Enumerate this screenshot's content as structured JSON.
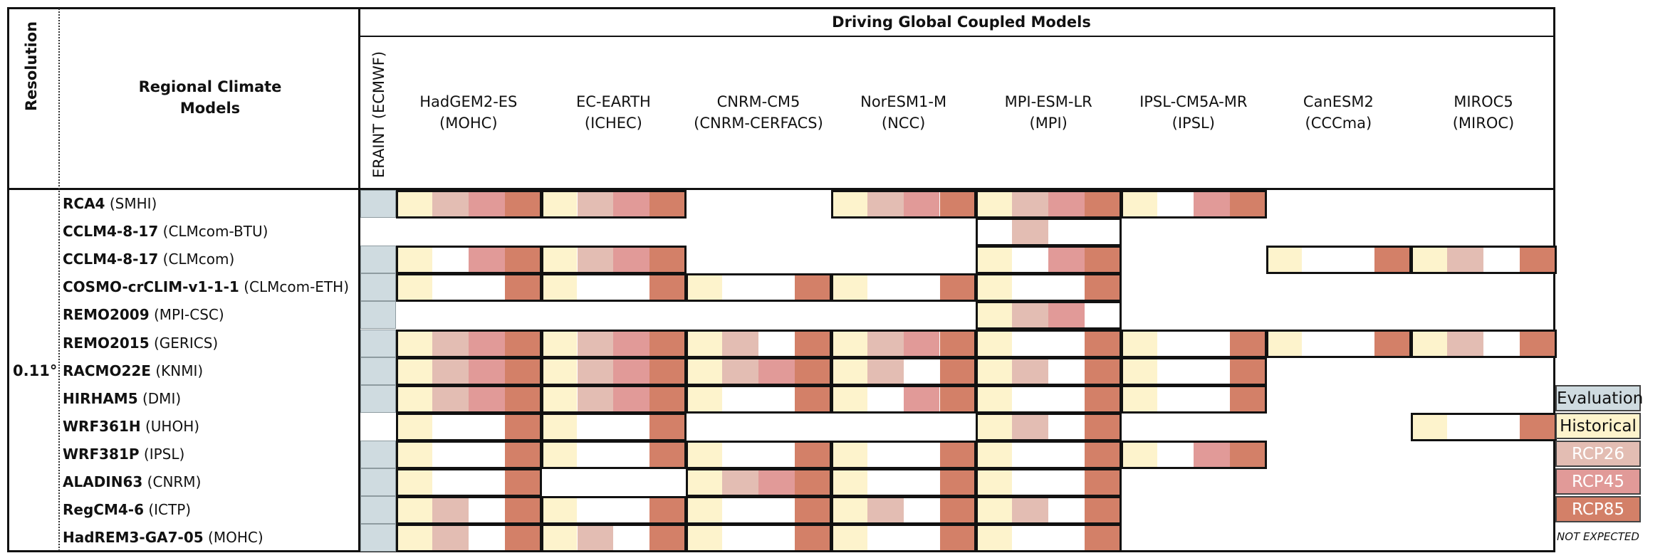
{
  "header": {
    "resolution": "Resolution",
    "rcm_title_line1": "Regional Climate",
    "rcm_title_line2": "Models",
    "driving_title": "Driving Global Coupled Models",
    "eraint": "ERAINT (ECMWF)"
  },
  "gcms": [
    {
      "name": "HadGEM2-ES",
      "inst": "(MOHC)"
    },
    {
      "name": "EC-EARTH",
      "inst": "(ICHEC)"
    },
    {
      "name": "CNRM-CM5",
      "inst": "(CNRM-CERFACS)"
    },
    {
      "name": "NorESM1-M",
      "inst": "(NCC)"
    },
    {
      "name": "MPI-ESM-LR",
      "inst": "(MPI)"
    },
    {
      "name": "IPSL-CM5A-MR",
      "inst": "(IPSL)"
    },
    {
      "name": "CanESM2",
      "inst": "(CCCma)"
    },
    {
      "name": "MIROC5",
      "inst": "(MIROC)"
    }
  ],
  "resolution_value": "0.11°",
  "colors": {
    "evaluation": "#cfdbe0",
    "historical": "#fdf3cc",
    "rcp26": "#e3bdb3",
    "rcp45": "#e19a98",
    "rcp85": "#d38068",
    "empty": "#ffffff"
  },
  "rcms": [
    {
      "model": "RCA4",
      "inst": " (SMHI)"
    },
    {
      "model": "CCLM4-8-17",
      "inst": " (CLMcom-BTU)"
    },
    {
      "model": "CCLM4-8-17",
      "inst": " (CLMcom)"
    },
    {
      "model": "COSMO-crCLIM-v1-1-1",
      "inst": " (CLMcom-ETH)"
    },
    {
      "model": "REMO2009",
      "inst": " (MPI-CSC)"
    },
    {
      "model": "REMO2015",
      "inst": " (GERICS)"
    },
    {
      "model": "RACMO22E",
      "inst": " (KNMI)"
    },
    {
      "model": "HIRHAM5",
      "inst": " (DMI)"
    },
    {
      "model": "WRF361H",
      "inst": " (UHOH)"
    },
    {
      "model": "WRF381P",
      "inst": " (IPSL)"
    },
    {
      "model": "ALADIN63",
      "inst": " (CNRM)"
    },
    {
      "model": "RegCM4-6",
      "inst": " (ICTP)"
    },
    {
      "model": "HadREM3-GA7-05",
      "inst": " (MOHC)"
    }
  ],
  "matrix": {
    "eval": [
      1,
      0,
      1,
      1,
      1,
      1,
      1,
      1,
      0,
      1,
      1,
      1,
      1
    ],
    "cells": [
      [
        "HBCD",
        "HBCD",
        "",
        "HBCD",
        "HBCD",
        "H-CD",
        "",
        ""
      ],
      [
        "",
        "",
        "",
        "",
        "-B--",
        "",
        "",
        ""
      ],
      [
        "H-CD",
        "HBCD",
        "",
        "",
        "H-CD",
        "",
        "H--D",
        "HB-D"
      ],
      [
        "H--D",
        "H--D",
        "H--D",
        "H--D",
        "H--D",
        "",
        "",
        ""
      ],
      [
        "",
        "",
        "",
        "",
        "HBC-",
        "",
        "",
        ""
      ],
      [
        "HBCD",
        "HBCD",
        "HB-D",
        "HBCD",
        "H--D",
        "H--D",
        "H--D",
        "HB-D"
      ],
      [
        "HBCD",
        "HBCD",
        "HBCD",
        "HB-D",
        "HB-D",
        "H--D",
        "",
        ""
      ],
      [
        "HBCD",
        "HBCD",
        "H--D",
        "H-CD",
        "H--D",
        "H--D",
        "",
        ""
      ],
      [
        "H--D",
        "H--D",
        "",
        "",
        "HB-D",
        "",
        "",
        "H--D"
      ],
      [
        "H--D",
        "H--D",
        "H--D",
        "H--D",
        "H--D",
        "H-CD",
        "",
        ""
      ],
      [
        "H--D",
        "",
        "HBCD",
        "H--D",
        "H--D",
        "",
        "",
        ""
      ],
      [
        "HB-D",
        "H--D",
        "H--D",
        "HB-D",
        "HB-D",
        "",
        "",
        ""
      ],
      [
        "HB-D",
        "HB-D",
        "H--D",
        "H--D",
        "H--D",
        "",
        "",
        ""
      ]
    ],
    "boxes": [
      [
        "1",
        "1",
        "0",
        "1",
        "1",
        "1",
        "0",
        "0"
      ],
      [
        "0",
        "0",
        "0",
        "0",
        "1",
        "0",
        "0",
        "0"
      ],
      [
        "1",
        "1",
        "0",
        "0",
        "1",
        "0",
        "1",
        "1"
      ],
      [
        "1",
        "1",
        "1",
        "1",
        "1",
        "0",
        "0",
        "0"
      ],
      [
        "0",
        "0",
        "0",
        "0",
        "1",
        "0",
        "0",
        "0"
      ],
      [
        "1",
        "1",
        "1",
        "1",
        "1",
        "1",
        "1",
        "1"
      ],
      [
        "1",
        "1",
        "1",
        "1",
        "1",
        "1",
        "0",
        "0"
      ],
      [
        "1",
        "1",
        "1",
        "1",
        "1",
        "1",
        "0",
        "0"
      ],
      [
        "1",
        "1",
        "0",
        "0",
        "1",
        "0",
        "0",
        "1"
      ],
      [
        "1",
        "1",
        "1",
        "1",
        "1",
        "1",
        "0",
        "0"
      ],
      [
        "1",
        "0",
        "1",
        "1",
        "1",
        "0",
        "0",
        "0"
      ],
      [
        "1",
        "1",
        "1",
        "1",
        "1",
        "0",
        "0",
        "0"
      ],
      [
        "1",
        "1",
        "1",
        "1",
        "1",
        "0",
        "0",
        "0"
      ]
    ]
  },
  "legend": [
    {
      "label": "Evaluation",
      "color": "#cfdbe0",
      "text_color": "#111111"
    },
    {
      "label": "Historical",
      "color": "#fdf3cc",
      "text_color": "#111111"
    },
    {
      "label": "RCP26",
      "color": "#e3bdb3",
      "text_color": "#ffffff"
    },
    {
      "label": "RCP45",
      "color": "#e19a98",
      "text_color": "#ffffff"
    },
    {
      "label": "RCP85",
      "color": "#d38068",
      "text_color": "#ffffff"
    },
    {
      "label": "NOT EXPECTED",
      "color": "#ffffff",
      "text_color": "#111111"
    }
  ]
}
